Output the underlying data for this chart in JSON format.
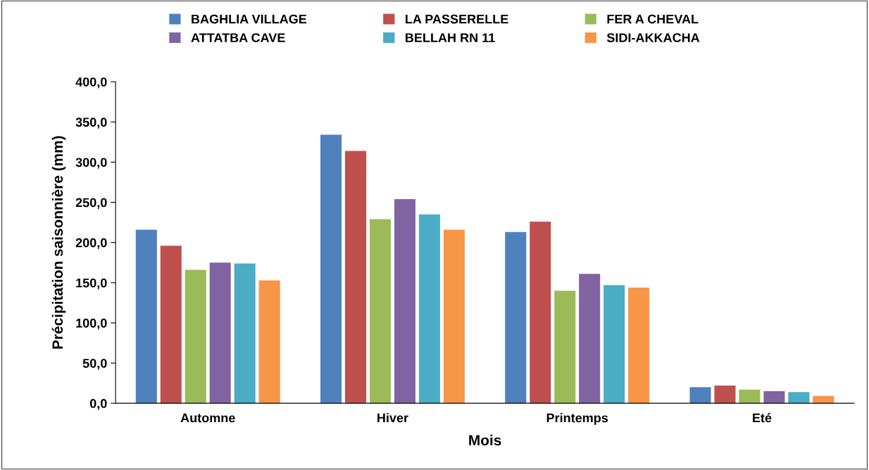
{
  "chart_data": {
    "type": "bar",
    "xlabel": "Mois",
    "ylabel": "Précipitation saisonnière (mm)",
    "categories": [
      "Automne",
      "Hiver",
      "Printemps",
      "Eté"
    ],
    "series": [
      {
        "name": "BAGHLIA VILLAGE",
        "color": "#4f81bd",
        "values": [
          216,
          334,
          213,
          20
        ]
      },
      {
        "name": "LA PASSERELLE",
        "color": "#c0504d",
        "values": [
          196,
          314,
          226,
          22
        ]
      },
      {
        "name": "FER A CHEVAL",
        "color": "#9bbb59",
        "values": [
          166,
          229,
          140,
          17
        ]
      },
      {
        "name": "ATTATBA CAVE",
        "color": "#8064a2",
        "values": [
          175,
          254,
          161,
          15
        ]
      },
      {
        "name": "BELLAH RN 11",
        "color": "#4bacc6",
        "values": [
          174,
          235,
          147,
          14
        ]
      },
      {
        "name": "SIDI-AKKACHA",
        "color": "#f79646",
        "values": [
          153,
          216,
          144,
          9
        ]
      }
    ],
    "ylim": [
      0,
      400
    ],
    "yticks": [
      {
        "value": 0,
        "label": "0,0"
      },
      {
        "value": 50,
        "label": "50,0"
      },
      {
        "value": 100,
        "label": "100,0"
      },
      {
        "value": 150,
        "label": "150,0"
      },
      {
        "value": 200,
        "label": "200,0"
      },
      {
        "value": 250,
        "label": "250,0"
      },
      {
        "value": 300,
        "label": "300,0"
      },
      {
        "value": 350,
        "label": "350,0"
      },
      {
        "value": 400,
        "label": "400,0"
      }
    ],
    "grid": false,
    "legend": "top"
  }
}
